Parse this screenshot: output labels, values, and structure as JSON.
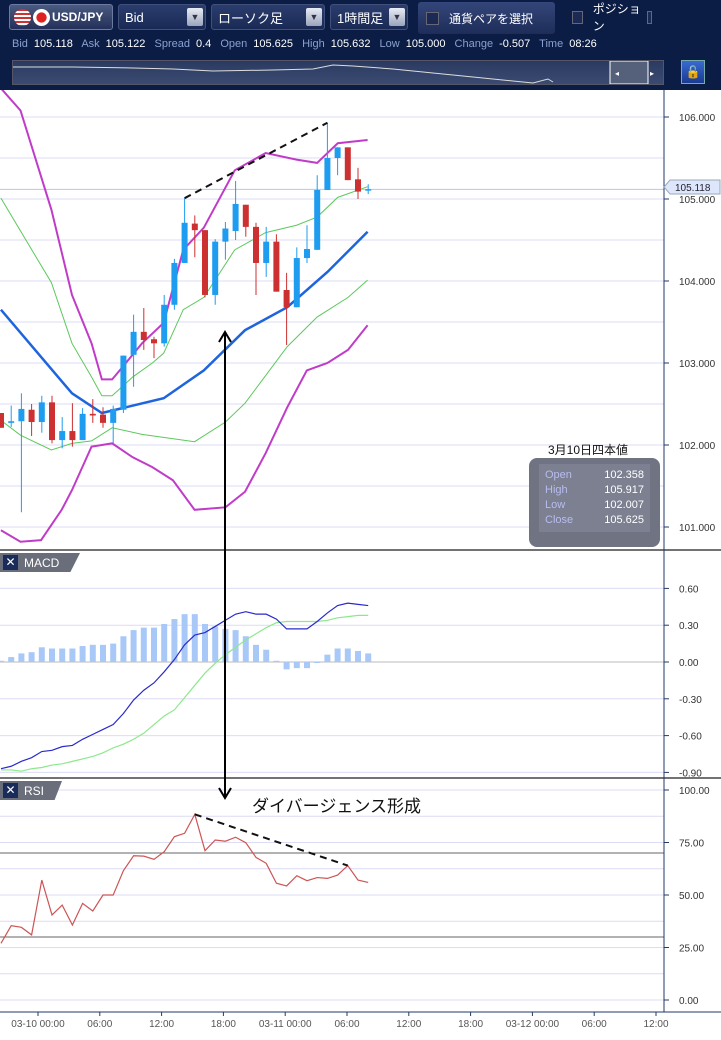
{
  "toolbar": {
    "pair": "USD/JPY",
    "price_type": "Bid",
    "chart_type": "ローソク足",
    "timeframe": "1時間足",
    "select_pair": "通貨ペアを選択",
    "position": "ポジション"
  },
  "quote": {
    "bid_label": "Bid",
    "bid": "105.118",
    "ask_label": "Ask",
    "ask": "105.122",
    "spread_label": "Spread",
    "spread": "0.4",
    "open_label": "Open",
    "open": "105.625",
    "high_label": "High",
    "high": "105.632",
    "low_label": "Low",
    "low": "105.000",
    "change_label": "Change",
    "change": "-0.507",
    "time_label": "Time",
    "time": "08:26"
  },
  "ohlc_box": {
    "title": "3月10日四本値",
    "rows": [
      {
        "k": "Open",
        "v": "102.358"
      },
      {
        "k": "High",
        "v": "105.917"
      },
      {
        "k": "Low",
        "v": "102.007"
      },
      {
        "k": "Close",
        "v": "105.625"
      }
    ]
  },
  "annotation": "ダイバージェンス形成",
  "current_price_tag": "105.118",
  "panels": {
    "macd": "MACD",
    "rsi": "RSI"
  },
  "colors": {
    "up": "#1e9cf0",
    "down": "#cc3030",
    "bb2": "#c03cc8",
    "bb1": "#5cc85c",
    "mid": "#1e64dc",
    "macd": "#2a2acc",
    "signal": "#8ce88c",
    "hist": "#a8c8f8",
    "rsi": "#cc5555"
  },
  "chart_data": [
    {
      "type": "candlestick",
      "title": "USD/JPY 1時間足",
      "y_ticks": [
        "106.000",
        "105.000",
        "104.000",
        "103.000",
        "102.000",
        "101.000"
      ],
      "x_ticks": [
        "03-10 00:00",
        "06:00",
        "12:00",
        "18:00",
        "03-11 00:00",
        "06:00",
        "12:00",
        "18:00",
        "03-12 00:00",
        "06:00",
        "12:00"
      ],
      "candles": [
        [
          102.39,
          102.39,
          102.21,
          102.21
        ],
        [
          102.27,
          102.48,
          102.22,
          102.29
        ],
        [
          102.29,
          102.63,
          101.18,
          102.44
        ],
        [
          102.43,
          102.5,
          102.11,
          102.28
        ],
        [
          102.28,
          102.6,
          102.15,
          102.52
        ],
        [
          102.52,
          102.6,
          102.02,
          102.06
        ],
        [
          102.06,
          102.34,
          101.96,
          102.17
        ],
        [
          102.17,
          102.51,
          101.98,
          102.06
        ],
        [
          102.06,
          102.45,
          102.06,
          102.38
        ],
        [
          102.38,
          102.56,
          102.27,
          102.36
        ],
        [
          102.37,
          102.46,
          102.21,
          102.27
        ],
        [
          102.27,
          102.48,
          102.02,
          102.44
        ],
        [
          102.43,
          103.09,
          102.39,
          103.09
        ],
        [
          103.1,
          103.59,
          102.71,
          103.38
        ],
        [
          103.38,
          103.67,
          103.16,
          103.28
        ],
        [
          103.29,
          103.32,
          103.06,
          103.24
        ],
        [
          103.24,
          103.83,
          103.2,
          103.71
        ],
        [
          103.71,
          104.27,
          103.65,
          104.22
        ],
        [
          104.22,
          105.01,
          104.22,
          104.71
        ],
        [
          104.7,
          104.8,
          104.29,
          104.62
        ],
        [
          104.62,
          104.62,
          103.8,
          103.83
        ],
        [
          103.83,
          104.51,
          103.71,
          104.48
        ],
        [
          104.48,
          104.72,
          104.26,
          104.64
        ],
        [
          104.61,
          105.22,
          104.5,
          104.94
        ],
        [
          104.93,
          104.93,
          104.54,
          104.66
        ],
        [
          104.66,
          104.71,
          103.83,
          104.22
        ],
        [
          104.22,
          104.66,
          104.05,
          104.48
        ],
        [
          104.48,
          104.57,
          103.87,
          103.87
        ],
        [
          103.89,
          104.1,
          103.22,
          103.68
        ],
        [
          103.68,
          104.41,
          103.68,
          104.28
        ],
        [
          104.28,
          104.68,
          104.22,
          104.39
        ],
        [
          104.38,
          105.29,
          104.38,
          105.11
        ],
        [
          105.11,
          105.93,
          105.11,
          105.5
        ],
        [
          105.5,
          105.63,
          105.29,
          105.63
        ],
        [
          105.63,
          105.63,
          105.23,
          105.23
        ],
        [
          105.24,
          105.38,
          105.0,
          105.09
        ],
        [
          105.12,
          105.18,
          105.06,
          105.12
        ]
      ],
      "bollinger": {
        "upper2": [
          [
            -3.6,
            106.35
          ],
          [
            -1.7,
            106.08
          ],
          [
            1.3,
            104.87
          ],
          [
            3.3,
            103.83
          ],
          [
            5.2,
            103.24
          ],
          [
            6.2,
            102.8
          ],
          [
            7.2,
            102.8
          ],
          [
            8.2,
            102.95
          ],
          [
            10.1,
            103.24
          ],
          [
            12.2,
            103.49
          ],
          [
            14.1,
            104.38
          ],
          [
            16.1,
            104.65
          ],
          [
            19.1,
            105.35
          ],
          [
            22.1,
            105.56
          ],
          [
            25.1,
            105.48
          ],
          [
            27.1,
            105.44
          ],
          [
            29.1,
            105.68
          ],
          [
            32,
            105.72
          ]
        ],
        "upper1": [
          [
            -3.6,
            105.01
          ],
          [
            1.3,
            103.98
          ],
          [
            3.3,
            103.24
          ],
          [
            5.2,
            102.83
          ],
          [
            6.2,
            102.6
          ],
          [
            7.2,
            102.6
          ],
          [
            9.2,
            102.83
          ],
          [
            11.1,
            103.0
          ],
          [
            12.2,
            103.12
          ],
          [
            14.1,
            103.65
          ],
          [
            16.1,
            103.8
          ],
          [
            19.1,
            104.38
          ],
          [
            22.1,
            104.59
          ],
          [
            25.1,
            104.68
          ],
          [
            27.1,
            104.78
          ],
          [
            29.1,
            105.02
          ],
          [
            32,
            105.15
          ]
        ],
        "middle": [
          [
            -3.6,
            103.65
          ],
          [
            3.3,
            102.63
          ],
          [
            6.2,
            102.39
          ],
          [
            8.2,
            102.45
          ],
          [
            12.2,
            102.57
          ],
          [
            16.1,
            102.91
          ],
          [
            20.1,
            103.4
          ],
          [
            24.2,
            103.68
          ],
          [
            28.1,
            104.11
          ],
          [
            32,
            104.6
          ]
        ],
        "lower1": [
          [
            -3.6,
            102.3
          ],
          [
            -1.7,
            102.12
          ],
          [
            1.3,
            101.94
          ],
          [
            3.3,
            102.02
          ],
          [
            5.2,
            102.05
          ],
          [
            7.2,
            102.21
          ],
          [
            10.1,
            102.13
          ],
          [
            15.2,
            102.04
          ],
          [
            18.2,
            102.28
          ],
          [
            20.1,
            102.51
          ],
          [
            24.2,
            103.2
          ],
          [
            27.1,
            103.56
          ],
          [
            30.1,
            103.8
          ],
          [
            32,
            104.01
          ]
        ],
        "lower2": [
          [
            -3.6,
            100.96
          ],
          [
            -1.7,
            100.82
          ],
          [
            0.3,
            100.84
          ],
          [
            2.3,
            101.21
          ],
          [
            3.3,
            101.45
          ],
          [
            5.2,
            101.98
          ],
          [
            7.2,
            102.02
          ],
          [
            9.2,
            101.85
          ],
          [
            11.1,
            101.73
          ],
          [
            13.1,
            101.57
          ],
          [
            15.2,
            101.21
          ],
          [
            18.2,
            101.24
          ],
          [
            20.1,
            101.43
          ],
          [
            22.1,
            101.9
          ],
          [
            24.2,
            102.46
          ],
          [
            26.1,
            102.91
          ],
          [
            28.1,
            103.0
          ],
          [
            30.1,
            103.16
          ],
          [
            32,
            103.46
          ]
        ]
      },
      "trendline": {
        "from_candle": 18,
        "from_price": 105.01,
        "to_candle": 32,
        "to_price": 105.93
      }
    },
    {
      "type": "macd",
      "y_ticks": [
        "0.60",
        "0.30",
        "0.00",
        "-0.30",
        "-0.60",
        "-0.90"
      ],
      "macd": [
        -0.87,
        -0.85,
        -0.81,
        -0.78,
        -0.73,
        -0.72,
        -0.69,
        -0.68,
        -0.63,
        -0.59,
        -0.55,
        -0.51,
        -0.42,
        -0.31,
        -0.23,
        -0.17,
        -0.08,
        0.02,
        0.14,
        0.22,
        0.24,
        0.29,
        0.34,
        0.39,
        0.41,
        0.39,
        0.39,
        0.35,
        0.27,
        0.27,
        0.27,
        0.33,
        0.4,
        0.46,
        0.48,
        0.47,
        0.46
      ],
      "signal": [
        -0.88,
        -0.88,
        -0.89,
        -0.87,
        -0.86,
        -0.84,
        -0.83,
        -0.81,
        -0.79,
        -0.77,
        -0.74,
        -0.7,
        -0.67,
        -0.63,
        -0.58,
        -0.51,
        -0.44,
        -0.39,
        -0.29,
        -0.19,
        -0.09,
        -0.01,
        0.06,
        0.12,
        0.18,
        0.23,
        0.28,
        0.32,
        0.33,
        0.33,
        0.33,
        0.33,
        0.34,
        0.36,
        0.37,
        0.38,
        0.38
      ],
      "histogram": [
        0.01,
        0.04,
        0.07,
        0.08,
        0.12,
        0.11,
        0.11,
        0.11,
        0.13,
        0.14,
        0.14,
        0.15,
        0.21,
        0.26,
        0.28,
        0.28,
        0.31,
        0.35,
        0.39,
        0.39,
        0.31,
        0.29,
        0.27,
        0.26,
        0.21,
        0.14,
        0.1,
        0.01,
        -0.06,
        -0.05,
        -0.05,
        0.0,
        0.06,
        0.11,
        0.11,
        0.09,
        0.07
      ]
    },
    {
      "type": "line",
      "name": "RSI",
      "y_ticks": [
        "100.00",
        "75.00",
        "50.00",
        "25.00",
        "0.00"
      ],
      "levels": [
        70,
        30
      ],
      "values": [
        27.0,
        35.4,
        34.6,
        31.0,
        57.1,
        40.5,
        45.2,
        35.7,
        46.0,
        42.4,
        50.0,
        50.0,
        61.6,
        68.7,
        68.5,
        67.0,
        70.6,
        77.8,
        79.4,
        88.4,
        71.1,
        76.2,
        75.6,
        77.5,
        74.9,
        67.9,
        65.1,
        55.6,
        54.3,
        59.2,
        56.8,
        58.3,
        57.9,
        59.5,
        64.0,
        57.1,
        56.0
      ],
      "trendline": {
        "from_candle": 19,
        "from_value": 88.4,
        "to_candle": 34,
        "to_value": 64.0
      }
    }
  ]
}
